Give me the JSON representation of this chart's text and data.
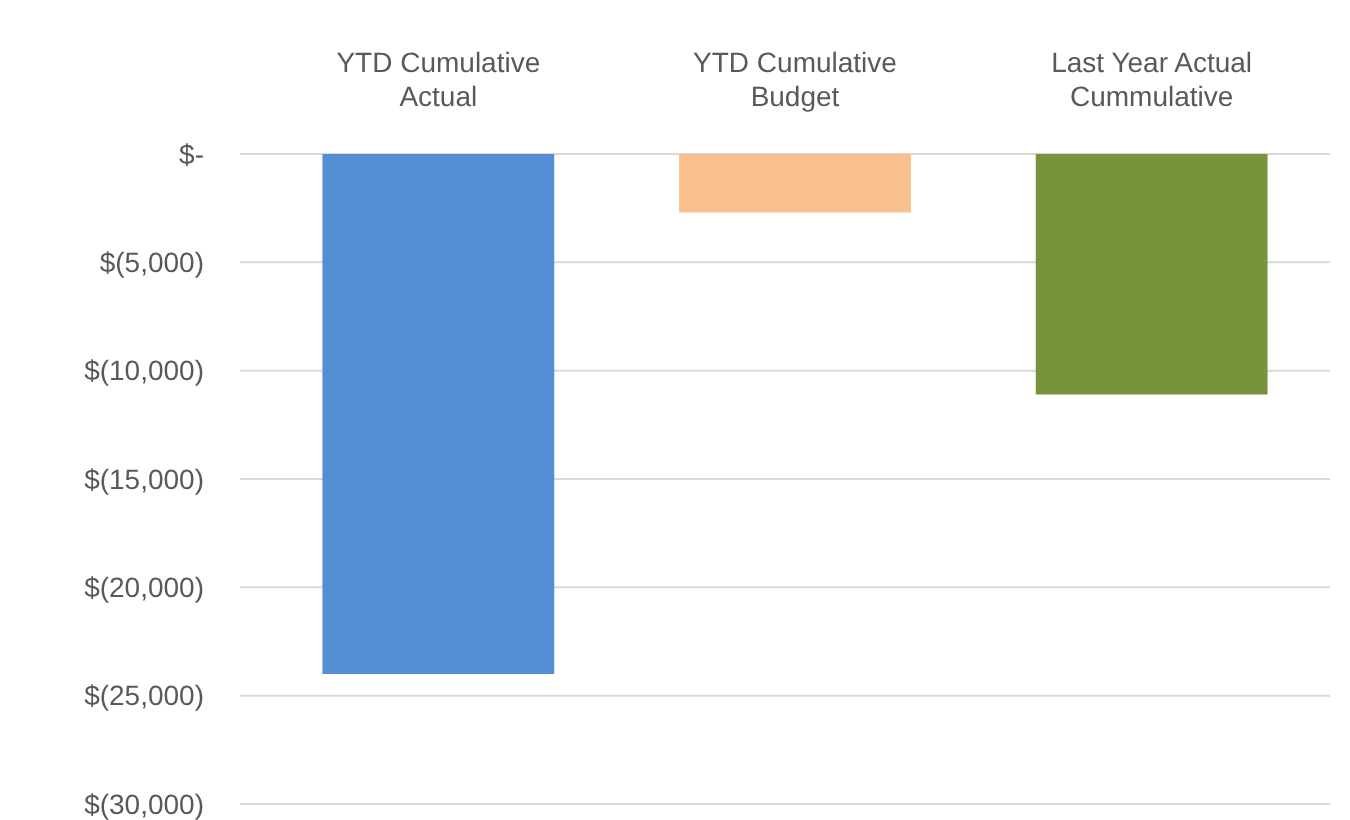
{
  "chart_data": {
    "type": "bar",
    "categories": [
      "YTD Cumulative Actual",
      "YTD Cumulative Budget",
      "Last Year Actual Cummulative"
    ],
    "values": [
      -24000,
      -2700,
      -11100
    ],
    "colors": [
      "#558ed5",
      "#fac090",
      "#77933c"
    ],
    "ylim": [
      -30000,
      0
    ],
    "yticks": [
      {
        "value": 0,
        "label": "$-"
      },
      {
        "value": -5000,
        "label": "$(5,000)"
      },
      {
        "value": -10000,
        "label": "$(10,000)"
      },
      {
        "value": -15000,
        "label": "$(15,000)"
      },
      {
        "value": -20000,
        "label": "$(20,000)"
      },
      {
        "value": -25000,
        "label": "$(25,000)"
      },
      {
        "value": -30000,
        "label": "$(30,000)"
      }
    ],
    "grid": "y"
  }
}
